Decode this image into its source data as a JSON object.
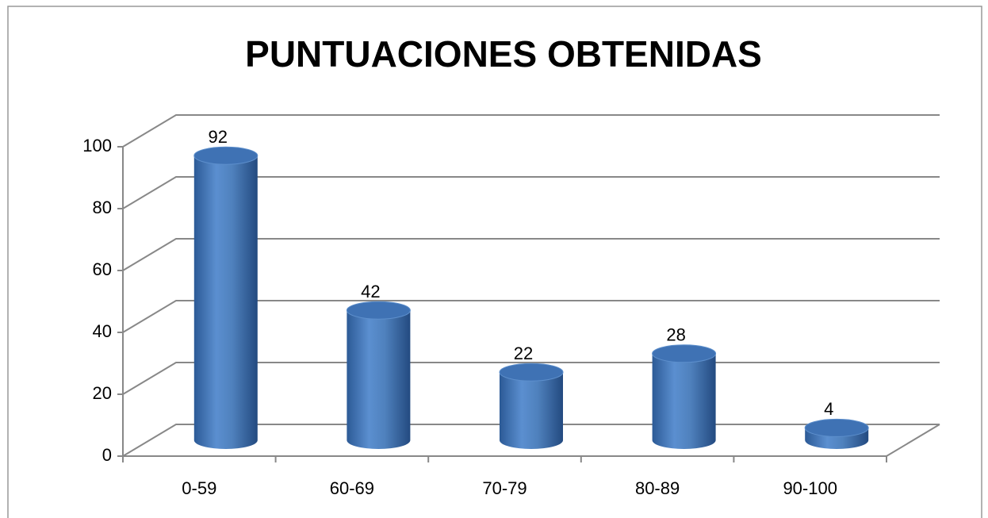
{
  "chart_data": {
    "type": "bar",
    "title": "PUNTUACIONES OBTENIDAS",
    "categories": [
      "0-59",
      "60-69",
      "70-79",
      "80-89",
      "90-100"
    ],
    "values": [
      92,
      42,
      22,
      28,
      4
    ],
    "color": "#4f81bd",
    "ylim": [
      0,
      100
    ],
    "yticks": [
      0,
      20,
      40,
      60,
      80,
      100
    ],
    "grid": true
  }
}
